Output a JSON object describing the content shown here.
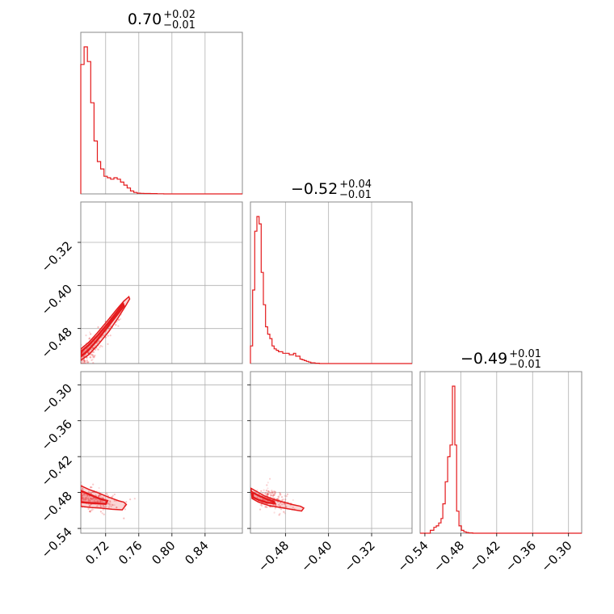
{
  "chart_data": {
    "type": "corner",
    "color": "#e41a1c",
    "parameters": [
      {
        "title_value": "0.70",
        "title_plus": "+0.02",
        "title_minus": "−0.01",
        "range": [
          0.69,
          0.885
        ],
        "ticks": [
          0.72,
          0.76,
          0.8,
          0.84
        ],
        "tick_labels": [
          "0.72",
          "0.76",
          "0.80",
          "0.84"
        ]
      },
      {
        "title_value": "−0.52",
        "title_plus": "+0.04",
        "title_minus": "−0.01",
        "range": [
          -0.545,
          -0.245
        ],
        "ticks": [
          -0.48,
          -0.4,
          -0.32
        ],
        "tick_labels": [
          "−0.48",
          "−0.40",
          "−0.32"
        ]
      },
      {
        "title_value": "−0.49",
        "title_plus": "+0.01",
        "title_minus": "−0.01",
        "range": [
          -0.548,
          -0.278
        ],
        "ticks": [
          -0.54,
          -0.48,
          -0.42,
          -0.36,
          -0.3
        ],
        "tick_labels": [
          "−0.54",
          "−0.48",
          "−0.42",
          "−0.36",
          "−0.30"
        ]
      }
    ],
    "hist": [
      {
        "edges": [
          0.69,
          0.694,
          0.698,
          0.702,
          0.706,
          0.71,
          0.714,
          0.718,
          0.722,
          0.726,
          0.73,
          0.734,
          0.738,
          0.742,
          0.746,
          0.75,
          0.754,
          0.758,
          0.762,
          0.766,
          0.77,
          0.774,
          0.778,
          0.782,
          0.786,
          0.79,
          0.885
        ],
        "counts": [
          0.88,
          1.0,
          0.9,
          0.62,
          0.36,
          0.22,
          0.17,
          0.12,
          0.11,
          0.1,
          0.11,
          0.1,
          0.08,
          0.06,
          0.04,
          0.02,
          0.01,
          0.005,
          0.004,
          0.003,
          0.003,
          0.002,
          0.002,
          0.001,
          0.001,
          0.0
        ]
      },
      {
        "edges": [
          -0.545,
          -0.541,
          -0.537,
          -0.533,
          -0.529,
          -0.525,
          -0.521,
          -0.517,
          -0.513,
          -0.509,
          -0.505,
          -0.501,
          -0.497,
          -0.493,
          -0.489,
          -0.485,
          -0.481,
          -0.477,
          -0.473,
          -0.469,
          -0.465,
          -0.461,
          -0.457,
          -0.453,
          -0.449,
          -0.445,
          -0.441,
          -0.437,
          -0.433,
          -0.425,
          -0.417,
          -0.245
        ],
        "counts": [
          0.12,
          0.5,
          0.9,
          1.0,
          0.95,
          0.62,
          0.4,
          0.25,
          0.2,
          0.17,
          0.12,
          0.1,
          0.09,
          0.08,
          0.08,
          0.07,
          0.07,
          0.07,
          0.06,
          0.06,
          0.07,
          0.05,
          0.05,
          0.03,
          0.025,
          0.02,
          0.015,
          0.01,
          0.005,
          0.002,
          0.0
        ]
      },
      {
        "edges": [
          -0.548,
          -0.531,
          -0.525,
          -0.521,
          -0.517,
          -0.513,
          -0.51,
          -0.506,
          -0.502,
          -0.498,
          -0.494,
          -0.49,
          -0.487,
          -0.483,
          -0.479,
          -0.475,
          -0.471,
          -0.467,
          -0.46,
          -0.278
        ],
        "counts": [
          0.0,
          0.02,
          0.04,
          0.05,
          0.07,
          0.1,
          0.2,
          0.35,
          0.52,
          0.6,
          1.0,
          0.6,
          0.15,
          0.05,
          0.02,
          0.01,
          0.005,
          0.002,
          0.0
        ]
      }
    ],
    "pairs": [
      {
        "row": 1,
        "col": 0,
        "outer_contour": [
          [
            0.689,
            -0.54
          ],
          [
            0.7,
            -0.528
          ],
          [
            0.712,
            -0.508
          ],
          [
            0.724,
            -0.485
          ],
          [
            0.735,
            -0.46
          ],
          [
            0.744,
            -0.438
          ],
          [
            0.749,
            -0.425
          ],
          [
            0.748,
            -0.421
          ],
          [
            0.742,
            -0.429
          ],
          [
            0.733,
            -0.445
          ],
          [
            0.722,
            -0.466
          ],
          [
            0.71,
            -0.488
          ],
          [
            0.7,
            -0.505
          ],
          [
            0.69,
            -0.518
          ]
        ],
        "inner_contour": [
          [
            0.69,
            -0.532
          ],
          [
            0.698,
            -0.522
          ],
          [
            0.708,
            -0.505
          ],
          [
            0.722,
            -0.478
          ],
          [
            0.735,
            -0.452
          ],
          [
            0.742,
            -0.438
          ],
          [
            0.741,
            -0.434
          ],
          [
            0.736,
            -0.444
          ],
          [
            0.724,
            -0.468
          ],
          [
            0.711,
            -0.492
          ],
          [
            0.7,
            -0.51
          ],
          [
            0.691,
            -0.522
          ]
        ],
        "center": [
          0.7,
          -0.52
        ],
        "direction": [
          0.055,
          0.105
        ],
        "spread": 0.006,
        "n": 280
      },
      {
        "row": 2,
        "col": 0,
        "outer_contour": [
          [
            0.689,
            -0.468
          ],
          [
            0.7,
            -0.475
          ],
          [
            0.712,
            -0.481
          ],
          [
            0.724,
            -0.488
          ],
          [
            0.736,
            -0.494
          ],
          [
            0.742,
            -0.496
          ],
          [
            0.745,
            -0.5
          ],
          [
            0.74,
            -0.509
          ],
          [
            0.728,
            -0.508
          ],
          [
            0.714,
            -0.506
          ],
          [
            0.702,
            -0.505
          ],
          [
            0.69,
            -0.503
          ]
        ],
        "inner_contour": [
          [
            0.69,
            -0.477
          ],
          [
            0.7,
            -0.483
          ],
          [
            0.712,
            -0.49
          ],
          [
            0.722,
            -0.494
          ],
          [
            0.72,
            -0.499
          ],
          [
            0.708,
            -0.498
          ],
          [
            0.697,
            -0.497
          ],
          [
            0.69,
            -0.496
          ]
        ],
        "center": [
          0.705,
          -0.492
        ],
        "direction": [
          0.045,
          -0.012
        ],
        "spread": 0.009,
        "n": 240
      },
      {
        "row": 2,
        "col": 1,
        "outer_contour": [
          [
            -0.544,
            -0.473
          ],
          [
            -0.534,
            -0.478
          ],
          [
            -0.518,
            -0.486
          ],
          [
            -0.5,
            -0.492
          ],
          [
            -0.484,
            -0.496
          ],
          [
            -0.468,
            -0.5
          ],
          [
            -0.452,
            -0.503
          ],
          [
            -0.446,
            -0.506
          ],
          [
            -0.45,
            -0.511
          ],
          [
            -0.47,
            -0.508
          ],
          [
            -0.49,
            -0.505
          ],
          [
            -0.51,
            -0.502
          ],
          [
            -0.53,
            -0.496
          ],
          [
            -0.542,
            -0.49
          ]
        ],
        "inner_contour": [
          [
            -0.541,
            -0.48
          ],
          [
            -0.53,
            -0.485
          ],
          [
            -0.515,
            -0.491
          ],
          [
            -0.502,
            -0.495
          ],
          [
            -0.5,
            -0.498
          ],
          [
            -0.514,
            -0.497
          ],
          [
            -0.528,
            -0.493
          ],
          [
            -0.54,
            -0.488
          ]
        ],
        "center": [
          -0.505,
          -0.492
        ],
        "direction": [
          0.06,
          -0.018
        ],
        "spread": 0.007,
        "n": 240
      }
    ]
  }
}
